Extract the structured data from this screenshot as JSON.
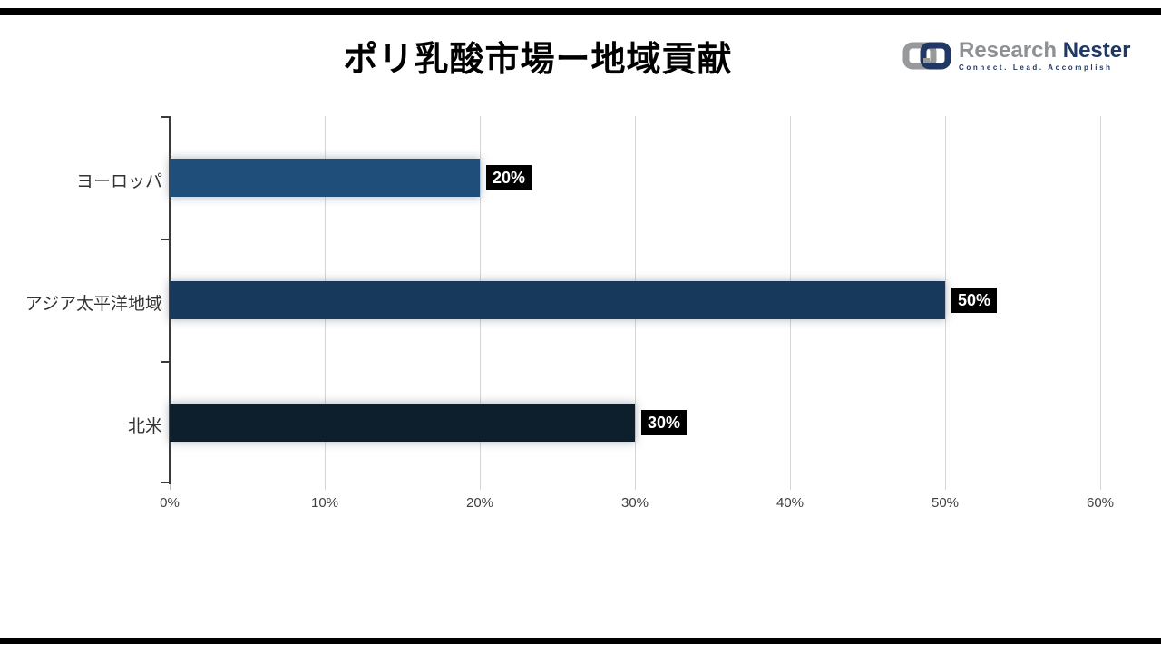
{
  "title": "ポリ乳酸市場ー地域貢献",
  "logo": {
    "name_primary": "Research",
    "name_secondary": "Nester",
    "tagline": "Connect. Lead. Accomplish",
    "icon_gray": "#97999c",
    "icon_navy": "#1f3864"
  },
  "chart_data": {
    "type": "bar",
    "orientation": "horizontal",
    "title": "ポリ乳酸市場ー地域貢献",
    "categories": [
      "ヨーロッパ",
      "アジア太平洋地域",
      "北米"
    ],
    "values": [
      20,
      50,
      30
    ],
    "data_labels": [
      "20%",
      "50%",
      "30%"
    ],
    "bar_colors": [
      "#1f4e7a",
      "#17395c",
      "#0d1e2d"
    ],
    "xlim": [
      0,
      60
    ],
    "x_tick_values": [
      0,
      10,
      20,
      30,
      40,
      50,
      60
    ],
    "x_tick_labels": [
      "0%",
      "10%",
      "20%",
      "30%",
      "40%",
      "50%",
      "60%"
    ],
    "grid": true,
    "gridline_color": "#d6d6d6",
    "axis_color": "#3a3a3a",
    "data_label_bg": "#000000",
    "data_label_fg": "#ffffff",
    "legend": "none"
  }
}
